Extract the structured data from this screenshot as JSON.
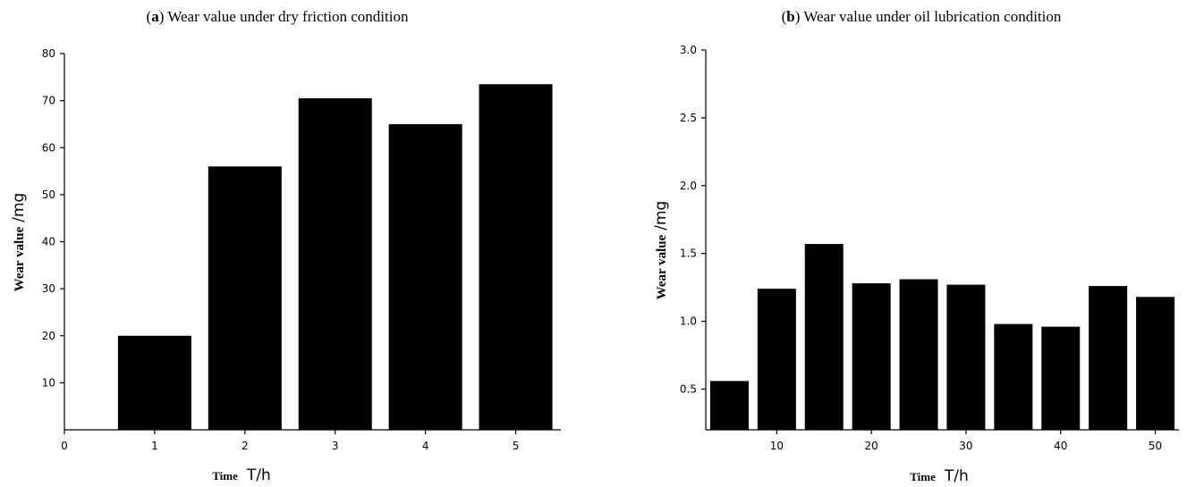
{
  "chart_data": [
    {
      "type": "bar",
      "title_prefix": "a",
      "title": "Wear value under dry friction condition",
      "xlabel": "Time",
      "xlabel_unit": "T/h",
      "ylabel": "Wear value",
      "ylabel_unit": "/mg",
      "x": [
        1,
        2,
        3,
        4,
        5
      ],
      "values": [
        20,
        56,
        70.5,
        65,
        73.5
      ],
      "xticks": [
        "0",
        "1",
        "2",
        "3",
        "4",
        "5"
      ],
      "yticks": [
        "10",
        "20",
        "30",
        "40",
        "50",
        "60",
        "70",
        "80"
      ],
      "xlim": [
        0,
        5.5
      ],
      "ylim": [
        0,
        80
      ],
      "grid": false,
      "bar_color": "#000000"
    },
    {
      "type": "bar",
      "title_prefix": "b",
      "title": "Wear value under oil lubrication condition",
      "xlabel": "Time",
      "xlabel_unit": "T/h",
      "ylabel": "Wear value",
      "ylabel_unit": "/mg",
      "x": [
        5,
        10,
        15,
        20,
        25,
        30,
        35,
        40,
        45,
        50
      ],
      "values": [
        0.56,
        1.24,
        1.57,
        1.28,
        1.31,
        1.27,
        0.98,
        0.96,
        1.26,
        1.18
      ],
      "xticks": [
        "10",
        "20",
        "30",
        "40",
        "50"
      ],
      "yticks": [
        "0.5",
        "1.0",
        "1.5",
        "2.0",
        "2.5",
        "3.0"
      ],
      "xlim": [
        2.5,
        52.5
      ],
      "ylim": [
        0.2,
        3.0
      ],
      "grid": false,
      "bar_color": "#000000"
    }
  ]
}
